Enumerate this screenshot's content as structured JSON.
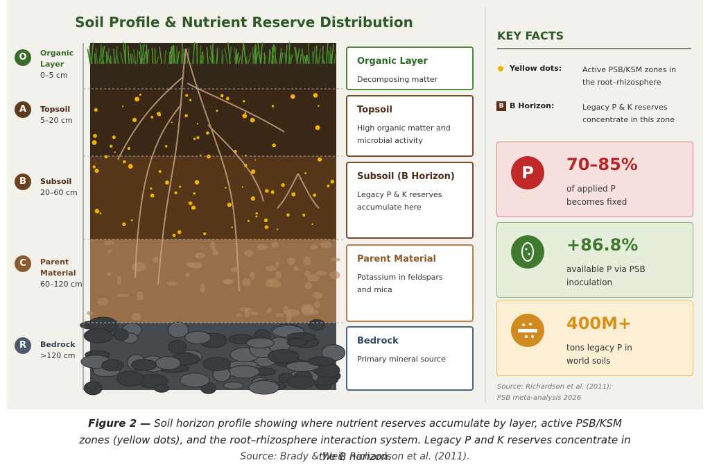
{
  "header": {
    "title": "Soil Profile & Nutrient Reserve Distribution"
  },
  "horizons": [
    {
      "letter": "O",
      "name": "Organic Layer",
      "depth": "0–5 cm"
    },
    {
      "letter": "A",
      "name": "Topsoil",
      "depth": "5–20 cm"
    },
    {
      "letter": "B",
      "name": "Subsoil",
      "depth": "20–60 cm"
    },
    {
      "letter": "C",
      "name": "Parent Material",
      "depth": "60–120 cm"
    },
    {
      "letter": "R",
      "name": "Bedrock",
      "depth": ">120 cm"
    }
  ],
  "layer_boxes": [
    {
      "title": "Organic Layer",
      "text": "Decomposing matter"
    },
    {
      "title": "Topsoil",
      "text": "High organic matter and microbial activity"
    },
    {
      "title": "Subsoil (B Horizon)",
      "text": "Legacy P & K reserves accumulate here"
    },
    {
      "title": "Parent Material",
      "text": "Potassium in feldspars and mica"
    },
    {
      "title": "Bedrock",
      "text": "Primary mineral source"
    }
  ],
  "key_facts": {
    "title": "KEY FACTS",
    "items": [
      {
        "label": "Yellow dots:",
        "text": "Active PSB/KSM zones in the root–rhizosphere"
      },
      {
        "badge": "B",
        "label": "B Horizon:",
        "text": "Legacy P & K reserves concentrate in this zone"
      }
    ],
    "stats": [
      {
        "icon": "P",
        "value": "70–85%",
        "text": "of applied P becomes fixed"
      },
      {
        "value": "+86.8%",
        "text": "available P via PSB inoculation"
      },
      {
        "value": "400M+",
        "text": "tons legacy P in world soils"
      }
    ],
    "source": "Source: Richardson et al. (2011); PSB meta-analysis 2026"
  },
  "caption": {
    "label": "Figure 2 —",
    "text": "Soil horizon profile showing where nutrient reserves accumulate by layer, active PSB/KSM zones (yellow dots), and the root–rhizosphere interaction system. Legacy P and K reserves concentrate in the B horizon.",
    "source": "Source: Brady & Weil; Richardson et al. (2011)."
  }
}
